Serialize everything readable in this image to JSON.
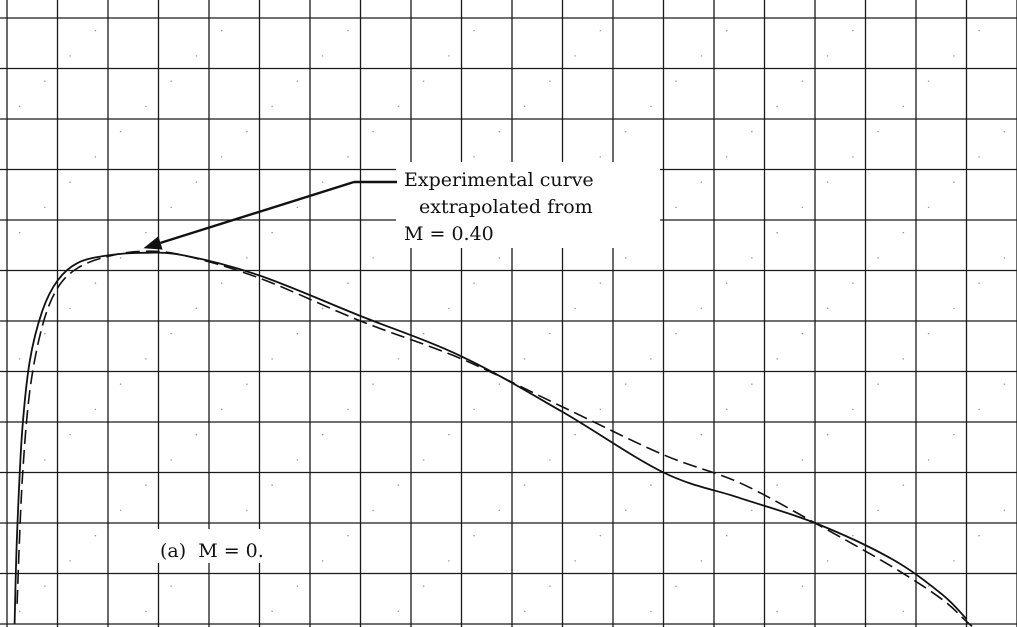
{
  "chart_data": {
    "type": "line",
    "title": "",
    "xlabel": "",
    "ylabel": "",
    "xlim": [
      0,
      20
    ],
    "ylim": [
      0,
      12
    ],
    "grid": true,
    "series": [
      {
        "style": "solid",
        "x": [
          0.15,
          0.2,
          0.3,
          0.45,
          0.7,
          1.0,
          1.4,
          2.0,
          2.7,
          3.5,
          5,
          7,
          9,
          11,
          13,
          14.5,
          16,
          17.5,
          18.5,
          19
        ],
        "y": [
          0.0,
          1.8,
          3.8,
          5.2,
          6.2,
          6.8,
          7.15,
          7.3,
          7.35,
          7.3,
          6.9,
          6.1,
          5.3,
          4.2,
          3.0,
          2.5,
          2.0,
          1.3,
          0.6,
          0.1
        ]
      },
      {
        "style": "dashed",
        "x": [
          0.2,
          0.3,
          0.45,
          0.7,
          1.0,
          1.4,
          2.0,
          2.7,
          3.5,
          5,
          7,
          9,
          11,
          13,
          14.5,
          16,
          17.5,
          18.5,
          19,
          19.4
        ],
        "y": [
          0.4,
          2.8,
          4.6,
          5.9,
          6.65,
          7.05,
          7.28,
          7.38,
          7.3,
          6.85,
          6.0,
          5.25,
          4.3,
          3.35,
          2.8,
          2.0,
          1.15,
          0.5,
          0.05,
          -0.3
        ]
      }
    ],
    "annotations": [
      {
        "id": "experimental",
        "lines": [
          "Experimental curve",
          "extrapolated from",
          "M = 0.40"
        ],
        "points_to": [
          2.7,
          7.38
        ]
      },
      {
        "id": "case",
        "text": "(a)  M = 0."
      }
    ]
  }
}
